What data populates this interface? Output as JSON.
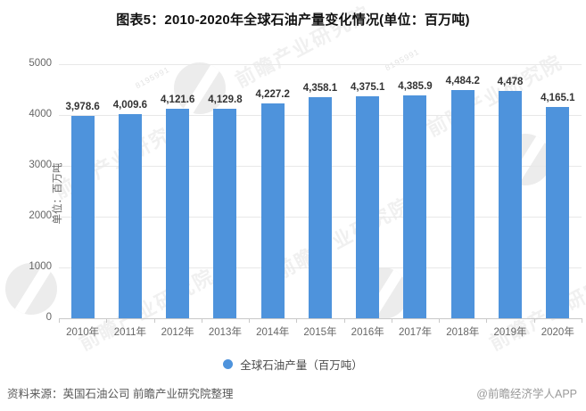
{
  "title": "图表5：2010-2020年全球石油产量变化情况(单位：百万吨)",
  "watermark": {
    "text": "前瞻产业研究院",
    "digits": "8195991"
  },
  "legend": {
    "label": "全球石油产量（百万吨）",
    "color": "#4e93dc"
  },
  "footer": {
    "source": "资料来源：英国石油公司 前瞻产业研究院整理",
    "credit": "@前瞻经济学人APP"
  },
  "chart_data": {
    "type": "bar",
    "title": "图表5：2010-2020年全球石油产量变化情况(单位：百万吨)",
    "series_name": "全球石油产量（百万吨）",
    "categories": [
      "2010年",
      "2011年",
      "2012年",
      "2013年",
      "2014年",
      "2015年",
      "2016年",
      "2017年",
      "2018年",
      "2019年",
      "2020年"
    ],
    "values": [
      3978.6,
      4009.6,
      4121.6,
      4129.8,
      4227.2,
      4358.1,
      4375.1,
      4385.9,
      4484.2,
      4478,
      4165.1
    ],
    "value_labels": [
      "3,978.6",
      "4,009.6",
      "4,121.6",
      "4,129.8",
      "4,227.2",
      "4,358.1",
      "4,375.1",
      "4,385.9",
      "4,484.2",
      "4,478",
      "4,165.1"
    ],
    "xlabel": "",
    "ylabel": "单位：百万吨",
    "ylim": [
      0,
      5000
    ],
    "yticks": [
      0,
      1000,
      2000,
      3000,
      4000,
      5000
    ],
    "grid": true,
    "legend_position": "bottom",
    "bar_color": "#4e93dc"
  }
}
